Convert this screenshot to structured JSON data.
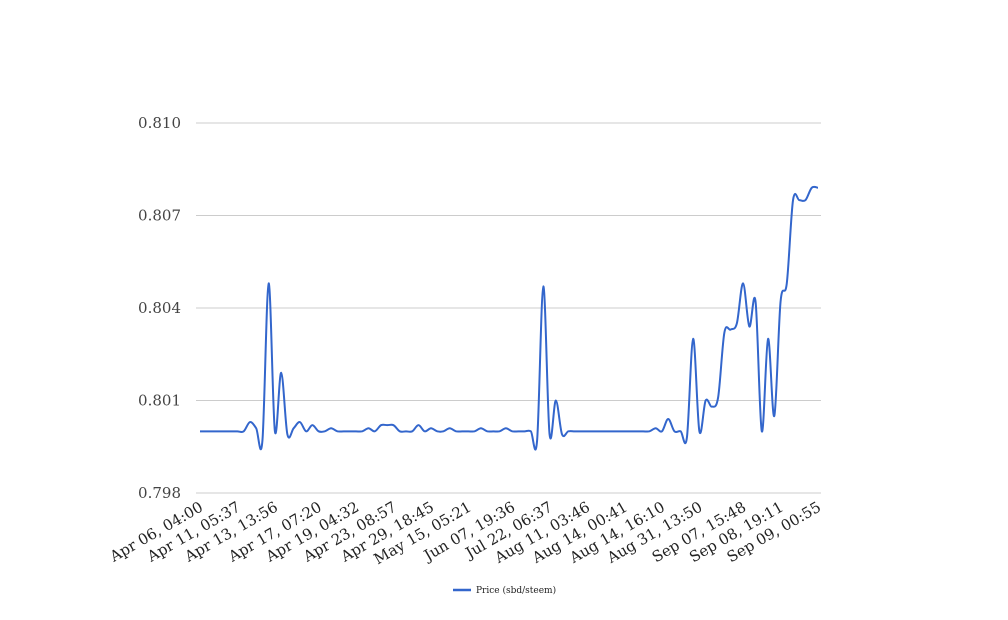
{
  "chart_data": {
    "type": "line",
    "title": "",
    "xlabel": "",
    "ylabel": "",
    "ylim": [
      0.798,
      0.81
    ],
    "yticks": [
      "0.798",
      "0.801",
      "0.804",
      "0.807",
      "0.810"
    ],
    "ytick_values": [
      0.798,
      0.801,
      0.804,
      0.807,
      0.81
    ],
    "grid": true,
    "legend": "bottom",
    "smooth": true,
    "xtick_labels": [
      "Apr 06, 04:00",
      "Apr 11, 05:37",
      "Apr 13, 13:56",
      "Apr 17, 07:20",
      "Apr 19, 04:32",
      "Apr 23, 08:57",
      "Apr 29, 18:45",
      "May 15, 05:21",
      "Jun 07, 19:36",
      "Jul 22, 06:37",
      "Aug 11, 03:46",
      "Aug 14, 00:41",
      "Aug 14, 16:10",
      "Aug 31, 13:50",
      "Sep 07, 15:48",
      "Sep 08, 19:11",
      "Sep 09, 00:55"
    ],
    "series": [
      {
        "name": "Price (sbd/steem)",
        "color": "#3366cc",
        "values": [
          0.8,
          0.8,
          0.8,
          0.8,
          0.8,
          0.8,
          0.8,
          0.8,
          0.8003,
          0.8001,
          0.7997,
          0.8048,
          0.8,
          0.8019,
          0.7999,
          0.8001,
          0.8003,
          0.8,
          0.8002,
          0.8,
          0.8,
          0.8001,
          0.8,
          0.8,
          0.8,
          0.8,
          0.8,
          0.8001,
          0.8,
          0.8002,
          0.8002,
          0.8002,
          0.8,
          0.8,
          0.8,
          0.8002,
          0.8,
          0.8001,
          0.8,
          0.8,
          0.8001,
          0.8,
          0.8,
          0.8,
          0.8,
          0.8001,
          0.8,
          0.8,
          0.8,
          0.8001,
          0.8,
          0.8,
          0.8,
          0.8,
          0.7997,
          0.8047,
          0.7999,
          0.801,
          0.7999,
          0.8,
          0.8,
          0.8,
          0.8,
          0.8,
          0.8,
          0.8,
          0.8,
          0.8,
          0.8,
          0.8,
          0.8,
          0.8,
          0.8,
          0.8001,
          0.8,
          0.8004,
          0.8,
          0.8,
          0.7998,
          0.803,
          0.8,
          0.801,
          0.8008,
          0.8011,
          0.8032,
          0.8033,
          0.8035,
          0.8048,
          0.8034,
          0.8042,
          0.8,
          0.803,
          0.8005,
          0.8042,
          0.8048,
          0.8075,
          0.8075,
          0.8075,
          0.8079,
          0.8079
        ]
      }
    ]
  }
}
